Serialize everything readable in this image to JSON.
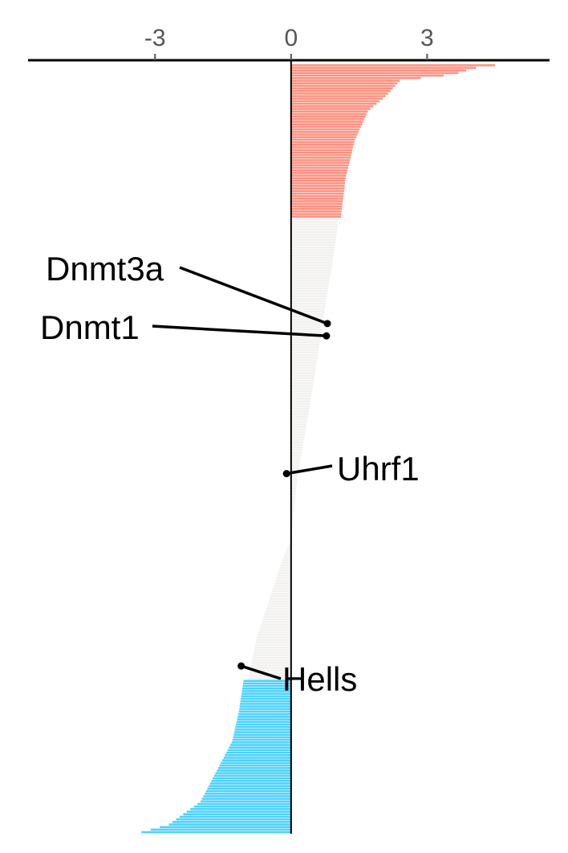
{
  "chart_data": {
    "type": "bar",
    "orientation": "horizontal",
    "title": "",
    "xlabel": "",
    "ylabel": "",
    "xlim": [
      -5.8,
      5.7
    ],
    "x_ticks": [
      -3,
      0,
      3
    ],
    "x_tick_labels": [
      "-3",
      "0",
      "3"
    ],
    "grid": false,
    "colors": {
      "up": "#ff9280",
      "neutral": "#f2f1ef",
      "down": "#4dd2ff",
      "axis": "#000000"
    },
    "groups": [
      {
        "name": "up",
        "color": "up",
        "bars": 60,
        "profile": [
          [
            0,
            4.5
          ],
          [
            0.02,
            4.0
          ],
          [
            0.06,
            3.6
          ],
          [
            0.1,
            2.4
          ],
          [
            0.2,
            2.1
          ],
          [
            0.3,
            1.7
          ],
          [
            0.5,
            1.4
          ],
          [
            0.75,
            1.2
          ],
          [
            1,
            1.1
          ]
        ]
      },
      {
        "name": "neutral",
        "color": "neutral",
        "bars": 125,
        "profile": [
          [
            0,
            1.05
          ],
          [
            0.15,
            0.9
          ],
          [
            0.25,
            0.78
          ],
          [
            0.4,
            0.62
          ],
          [
            0.6,
            0.4
          ],
          [
            0.8,
            0.15
          ],
          [
            1,
            0
          ]
        ]
      },
      {
        "name": "neutral-negative",
        "color": "neutral",
        "bars": 55,
        "profile": [
          [
            0,
            0
          ],
          [
            0.15,
            -0.2
          ],
          [
            0.4,
            -0.45
          ],
          [
            0.7,
            -0.75
          ],
          [
            1,
            -0.95
          ]
        ]
      },
      {
        "name": "down",
        "color": "down",
        "bars": 60,
        "profile": [
          [
            0,
            -1.05
          ],
          [
            0.2,
            -1.15
          ],
          [
            0.4,
            -1.3
          ],
          [
            0.6,
            -1.65
          ],
          [
            0.8,
            -2.0
          ],
          [
            0.95,
            -2.7
          ],
          [
            1,
            -3.3
          ]
        ]
      }
    ],
    "highlights": [
      {
        "gene": "Dnmt3a",
        "value": 0.8,
        "rank": 0.337,
        "label_side": "left"
      },
      {
        "gene": "Dnmt1",
        "value": 0.78,
        "rank": 0.353,
        "label_side": "left"
      },
      {
        "gene": "Uhrf1",
        "value": -0.1,
        "rank": 0.532,
        "label_side": "right"
      },
      {
        "gene": "Hells",
        "value": -1.1,
        "rank": 0.782,
        "label_side": "right"
      }
    ]
  }
}
